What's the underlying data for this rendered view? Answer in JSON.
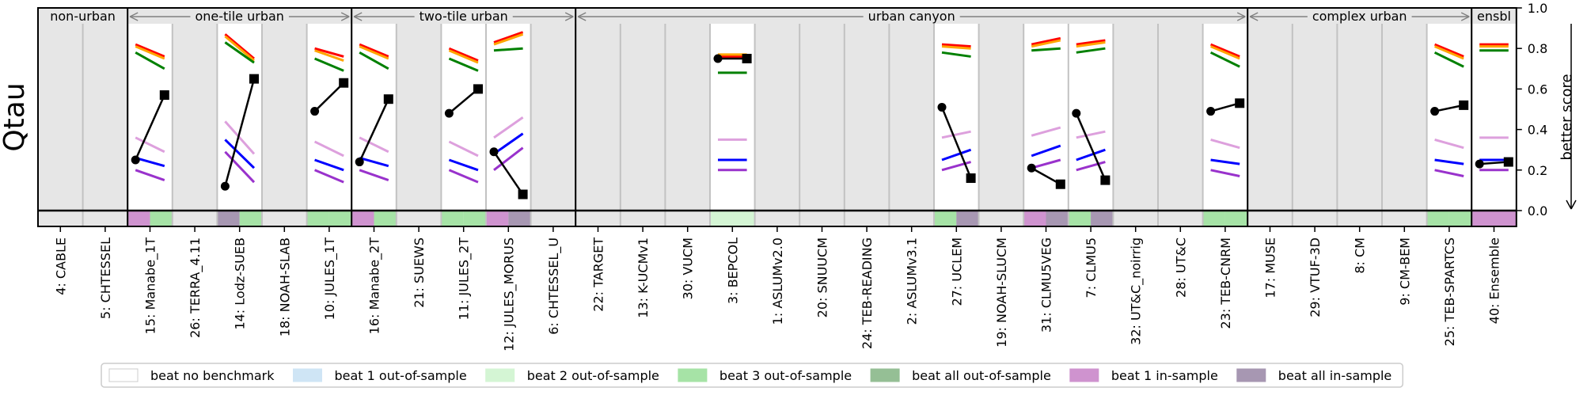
{
  "chart_data": {
    "type": "line",
    "ylabel": "Qtau",
    "right_label": "better score",
    "ylim": [
      0.0,
      1.0
    ],
    "yticks": [
      "0.0",
      "0.2",
      "0.4",
      "0.6",
      "0.8",
      "1.0"
    ],
    "groups": [
      {
        "label": "non-urban",
        "models": [
          "4: CABLE",
          "5: CHTESSEL"
        ]
      },
      {
        "label": "one-tile urban",
        "models": [
          "15: Manabe_1T",
          "26: TERRA_4.11",
          "14: Lodz-SUEB",
          "18: NOAH-SLAB",
          "10: JULES_1T"
        ]
      },
      {
        "label": "two-tile urban",
        "models": [
          "16: Manabe_2T",
          "21: SUEWS",
          "11: JULES_2T",
          "12: JULES_MORUS",
          "6: CHTESSEL_U"
        ]
      },
      {
        "label": "urban canyon",
        "models": [
          "22: TARGET",
          "13: K-UCMv1",
          "30: VUCM",
          "3: BEPCOL",
          "1: ASLUMv2.0",
          "20: SNUUCM",
          "24: TEB-READING",
          "2: ASLUMv3.1",
          "27: UCLEM",
          "19: NOAH-SLUCM",
          "31: CLMU5VEG",
          "7: CLMU5",
          "32: UT&C_noirrig",
          "28: UT&C",
          "23: TEB-CNRM"
        ]
      },
      {
        "label": "complex urban",
        "models": [
          "17: MUSE",
          "29: VTUF-3D",
          "8: CM",
          "9: CM-BEM",
          "25: TEB-SPARTCS"
        ]
      },
      {
        "label": "ensbl",
        "models": [
          "40: Ensemble"
        ]
      }
    ],
    "series_colors": {
      "out_of_sample_1": "#ff0000",
      "out_of_sample_2": "#ffa500",
      "out_of_sample_3": "#008000",
      "in_sample_1": "#dda0dd",
      "in_sample_2": "#0000ff",
      "in_sample_3": "#9932cc",
      "model": "#000000"
    },
    "submitted": [
      {
        "model": "15: Manabe_1T",
        "lines": [
          [
            0.82,
            0.76
          ],
          [
            0.81,
            0.75
          ],
          [
            0.78,
            0.7
          ],
          [
            0.36,
            0.29
          ],
          [
            0.26,
            0.22
          ],
          [
            0.2,
            0.15
          ]
        ],
        "model_start": 0.25,
        "model_end": 0.57,
        "bar": [
          "#cf93cf",
          "#a6e3a6"
        ]
      },
      {
        "model": "14: Lodz-SUEB",
        "lines": [
          [
            0.87,
            0.75
          ],
          [
            0.86,
            0.74
          ],
          [
            0.83,
            0.73
          ],
          [
            0.44,
            0.28
          ],
          [
            0.35,
            0.21
          ],
          [
            0.29,
            0.14
          ]
        ],
        "model_start": 0.12,
        "model_end": 0.65,
        "bar": [
          "#a797b2",
          "#a6e3a6"
        ]
      },
      {
        "model": "10: JULES_1T",
        "lines": [
          [
            0.8,
            0.76
          ],
          [
            0.79,
            0.74
          ],
          [
            0.75,
            0.69
          ],
          [
            0.34,
            0.27
          ],
          [
            0.25,
            0.2
          ],
          [
            0.2,
            0.14
          ]
        ],
        "model_start": 0.49,
        "model_end": 0.63,
        "bar": [
          "#a6e3a6",
          "#a6e3a6"
        ]
      },
      {
        "model": "16: Manabe_2T",
        "lines": [
          [
            0.82,
            0.76
          ],
          [
            0.81,
            0.75
          ],
          [
            0.78,
            0.7
          ],
          [
            0.36,
            0.29
          ],
          [
            0.26,
            0.22
          ],
          [
            0.2,
            0.15
          ]
        ],
        "model_start": 0.24,
        "model_end": 0.55,
        "bar": [
          "#cf93cf",
          "#a6e3a6"
        ]
      },
      {
        "model": "11: JULES_2T",
        "lines": [
          [
            0.8,
            0.74
          ],
          [
            0.79,
            0.73
          ],
          [
            0.75,
            0.69
          ],
          [
            0.34,
            0.27
          ],
          [
            0.25,
            0.2
          ],
          [
            0.2,
            0.14
          ]
        ],
        "model_start": 0.48,
        "model_end": 0.6,
        "bar": [
          "#a6e3a6",
          "#a6e3a6"
        ]
      },
      {
        "model": "12: JULES_MORUS",
        "lines": [
          [
            0.83,
            0.88
          ],
          [
            0.82,
            0.87
          ],
          [
            0.79,
            0.8
          ],
          [
            0.36,
            0.46
          ],
          [
            0.28,
            0.38
          ],
          [
            0.2,
            0.31
          ]
        ],
        "model_start": 0.29,
        "model_end": 0.08,
        "bar": [
          "#cf93cf",
          "#a797b2"
        ]
      },
      {
        "model": "3: BEPCOL",
        "lines": [
          [
            0.76,
            0.76
          ],
          [
            0.77,
            0.77
          ],
          [
            0.68,
            0.68
          ],
          [
            0.35,
            0.35
          ],
          [
            0.25,
            0.25
          ],
          [
            0.2,
            0.2
          ]
        ],
        "model_start": 0.75,
        "model_end": 0.75,
        "bar": [
          "#d4f5d4",
          "#d4f5d4"
        ]
      },
      {
        "model": "27: UCLEM",
        "lines": [
          [
            0.82,
            0.81
          ],
          [
            0.81,
            0.8
          ],
          [
            0.78,
            0.76
          ],
          [
            0.36,
            0.39
          ],
          [
            0.25,
            0.3
          ],
          [
            0.2,
            0.24
          ]
        ],
        "model_start": 0.51,
        "model_end": 0.16,
        "bar": [
          "#a6e3a6",
          "#a797b2"
        ]
      },
      {
        "model": "31: CLMU5VEG",
        "lines": [
          [
            0.82,
            0.85
          ],
          [
            0.81,
            0.84
          ],
          [
            0.79,
            0.8
          ],
          [
            0.37,
            0.41
          ],
          [
            0.27,
            0.32
          ],
          [
            0.21,
            0.25
          ]
        ],
        "model_start": 0.21,
        "model_end": 0.13,
        "bar": [
          "#cf93cf",
          "#a797b2"
        ]
      },
      {
        "model": "7: CLMU5",
        "lines": [
          [
            0.82,
            0.84
          ],
          [
            0.81,
            0.83
          ],
          [
            0.78,
            0.8
          ],
          [
            0.36,
            0.39
          ],
          [
            0.25,
            0.3
          ],
          [
            0.2,
            0.24
          ]
        ],
        "model_start": 0.48,
        "model_end": 0.15,
        "bar": [
          "#a6e3a6",
          "#a797b2"
        ]
      },
      {
        "model": "23: TEB-CNRM",
        "lines": [
          [
            0.82,
            0.76
          ],
          [
            0.81,
            0.75
          ],
          [
            0.78,
            0.71
          ],
          [
            0.35,
            0.31
          ],
          [
            0.25,
            0.23
          ],
          [
            0.2,
            0.17
          ]
        ],
        "model_start": 0.49,
        "model_end": 0.53,
        "bar": [
          "#a6e3a6",
          "#a6e3a6"
        ]
      },
      {
        "model": "25: TEB-SPARTCS",
        "lines": [
          [
            0.82,
            0.76
          ],
          [
            0.81,
            0.75
          ],
          [
            0.78,
            0.71
          ],
          [
            0.35,
            0.31
          ],
          [
            0.25,
            0.23
          ],
          [
            0.2,
            0.17
          ]
        ],
        "model_start": 0.49,
        "model_end": 0.52,
        "bar": [
          "#a6e3a6",
          "#a6e3a6"
        ]
      },
      {
        "model": "40: Ensemble",
        "lines": [
          [
            0.82,
            0.82
          ],
          [
            0.81,
            0.81
          ],
          [
            0.79,
            0.79
          ],
          [
            0.36,
            0.36
          ],
          [
            0.25,
            0.25
          ],
          [
            0.2,
            0.2
          ]
        ],
        "model_start": 0.23,
        "model_end": 0.24,
        "bar": [
          "#cf93cf",
          "#cf93cf"
        ]
      }
    ],
    "legend": [
      {
        "label": "beat no benchmark",
        "color": "#ffffff"
      },
      {
        "label": "beat 1 out-of-sample",
        "color": "#cfe5f5"
      },
      {
        "label": "beat 2 out-of-sample",
        "color": "#d4f5d4"
      },
      {
        "label": "beat 3 out-of-sample",
        "color": "#a6e3a6"
      },
      {
        "label": "beat all out-of-sample",
        "color": "#95bf95"
      },
      {
        "label": "beat 1 in-sample",
        "color": "#cf93cf"
      },
      {
        "label": "beat all in-sample",
        "color": "#a797b2"
      }
    ]
  }
}
